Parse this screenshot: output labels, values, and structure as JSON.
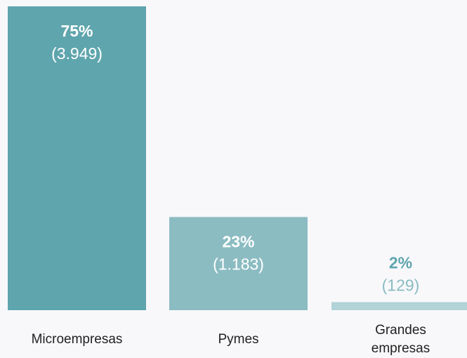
{
  "chart_data": {
    "type": "bar",
    "categories": [
      "Microempresas",
      "Pymes",
      "Grandes empresas"
    ],
    "values": [
      75,
      23,
      2
    ],
    "value_labels": [
      "75%",
      "23%",
      "2%"
    ],
    "count_labels": [
      "(3.949)",
      "(1.183)",
      "(129)"
    ],
    "colors": [
      "#5fa5ad",
      "#8bbcc2",
      "#b2d3d7"
    ],
    "ylim": [
      0,
      75
    ]
  }
}
